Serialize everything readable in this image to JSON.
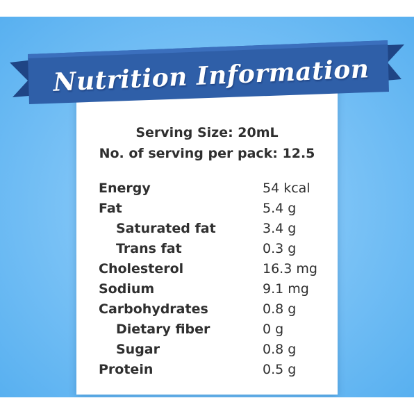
{
  "title": "Nutrition Information",
  "serving": {
    "size": "Serving Size: 20mL",
    "per_pack": "No. of serving per pack: 12.5"
  },
  "nutrients": [
    {
      "label": "Energy",
      "value": "54 kcal"
    },
    {
      "label": "Fat",
      "value": "5.4 g"
    },
    {
      "label": "Saturated fat",
      "value": "3.4 g"
    },
    {
      "label": "Trans fat",
      "value": "0.3 g"
    },
    {
      "label": "Cholesterol",
      "value": "16.3 mg"
    },
    {
      "label": "Sodium",
      "value": "9.1 mg"
    },
    {
      "label": "Carbohydrates",
      "value": "0.8 g"
    },
    {
      "label": "Dietary fiber",
      "value": "0 g"
    },
    {
      "label": "Sugar",
      "value": "0.8 g"
    },
    {
      "label": "Protein",
      "value": "0.5 g"
    }
  ],
  "colors": {
    "banner": "#2f5fa8",
    "banner_dark": "#1f4585",
    "background": "#7cc3f6",
    "text": "#2f2f2f"
  }
}
